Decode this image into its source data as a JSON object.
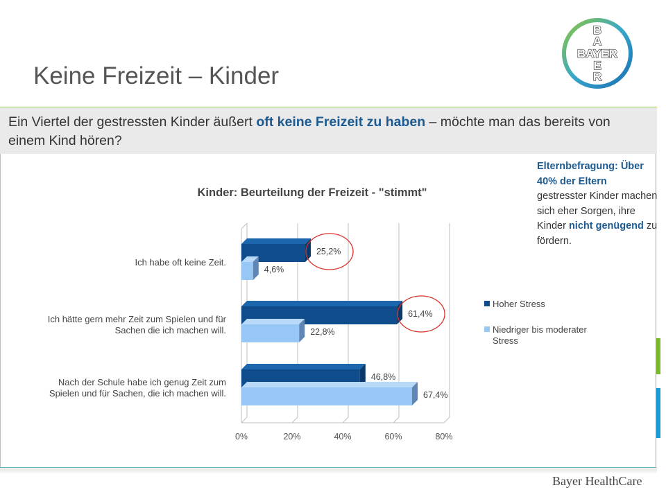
{
  "page": {
    "title": "Keine Freizeit – Kinder",
    "subtitle_pre": "Ein Viertel der gestressten Kinder äußert ",
    "subtitle_em": "oft keine Freizeit zu haben",
    "subtitle_post": " – möchte man das bereits von einem Kind hören?",
    "logo_text": "BAYER",
    "footer": "Bayer HealthCare"
  },
  "note": {
    "parts": [
      {
        "t": "Elternbefragung: Über 40% der Eltern",
        "b": true
      },
      {
        "t": " gestresster Kinder machen sich eher Sorgen, ihre Kinder ",
        "b": false
      },
      {
        "t": "nicht genügend",
        "b": true
      },
      {
        "t": " zu fördern.",
        "b": false
      }
    ]
  },
  "colors": {
    "accent_blue": "#1c5a91",
    "green_line": "#89c33a",
    "side_green": "#7ab929",
    "side_blue": "#169bd5"
  },
  "chart_data": {
    "type": "bar",
    "orientation": "horizontal",
    "title": "Kinder: Beurteilung der Freizeit - \"stimmt\"",
    "categories": [
      [
        "Ich habe oft keine Zeit."
      ],
      [
        "Ich hätte gern mehr Zeit zum Spielen und für",
        "Sachen die ich machen will."
      ],
      [
        "Nach der Schule habe ich genug Zeit zum",
        "Spielen und für Sachen, die ich machen will."
      ]
    ],
    "series": [
      {
        "name": "Hoher Stress",
        "color": "#0f4c8c",
        "values": [
          25.2,
          61.4,
          46.8
        ],
        "labels": [
          "25,2%",
          "61,4%",
          "46,8%"
        ]
      },
      {
        "name": "Niedriger bis moderater Stress",
        "color": "#97c7f5",
        "values": [
          4.6,
          22.8,
          67.4
        ],
        "labels": [
          "4,6%",
          "22,8%",
          "67,4%"
        ]
      }
    ],
    "xlim": [
      0,
      80
    ],
    "xticks": [
      "0%",
      "20%",
      "40%",
      "60%",
      "80%"
    ],
    "highlighted": [
      "25,2%",
      "61,4%"
    ],
    "legend_position": "right",
    "grid": true
  }
}
